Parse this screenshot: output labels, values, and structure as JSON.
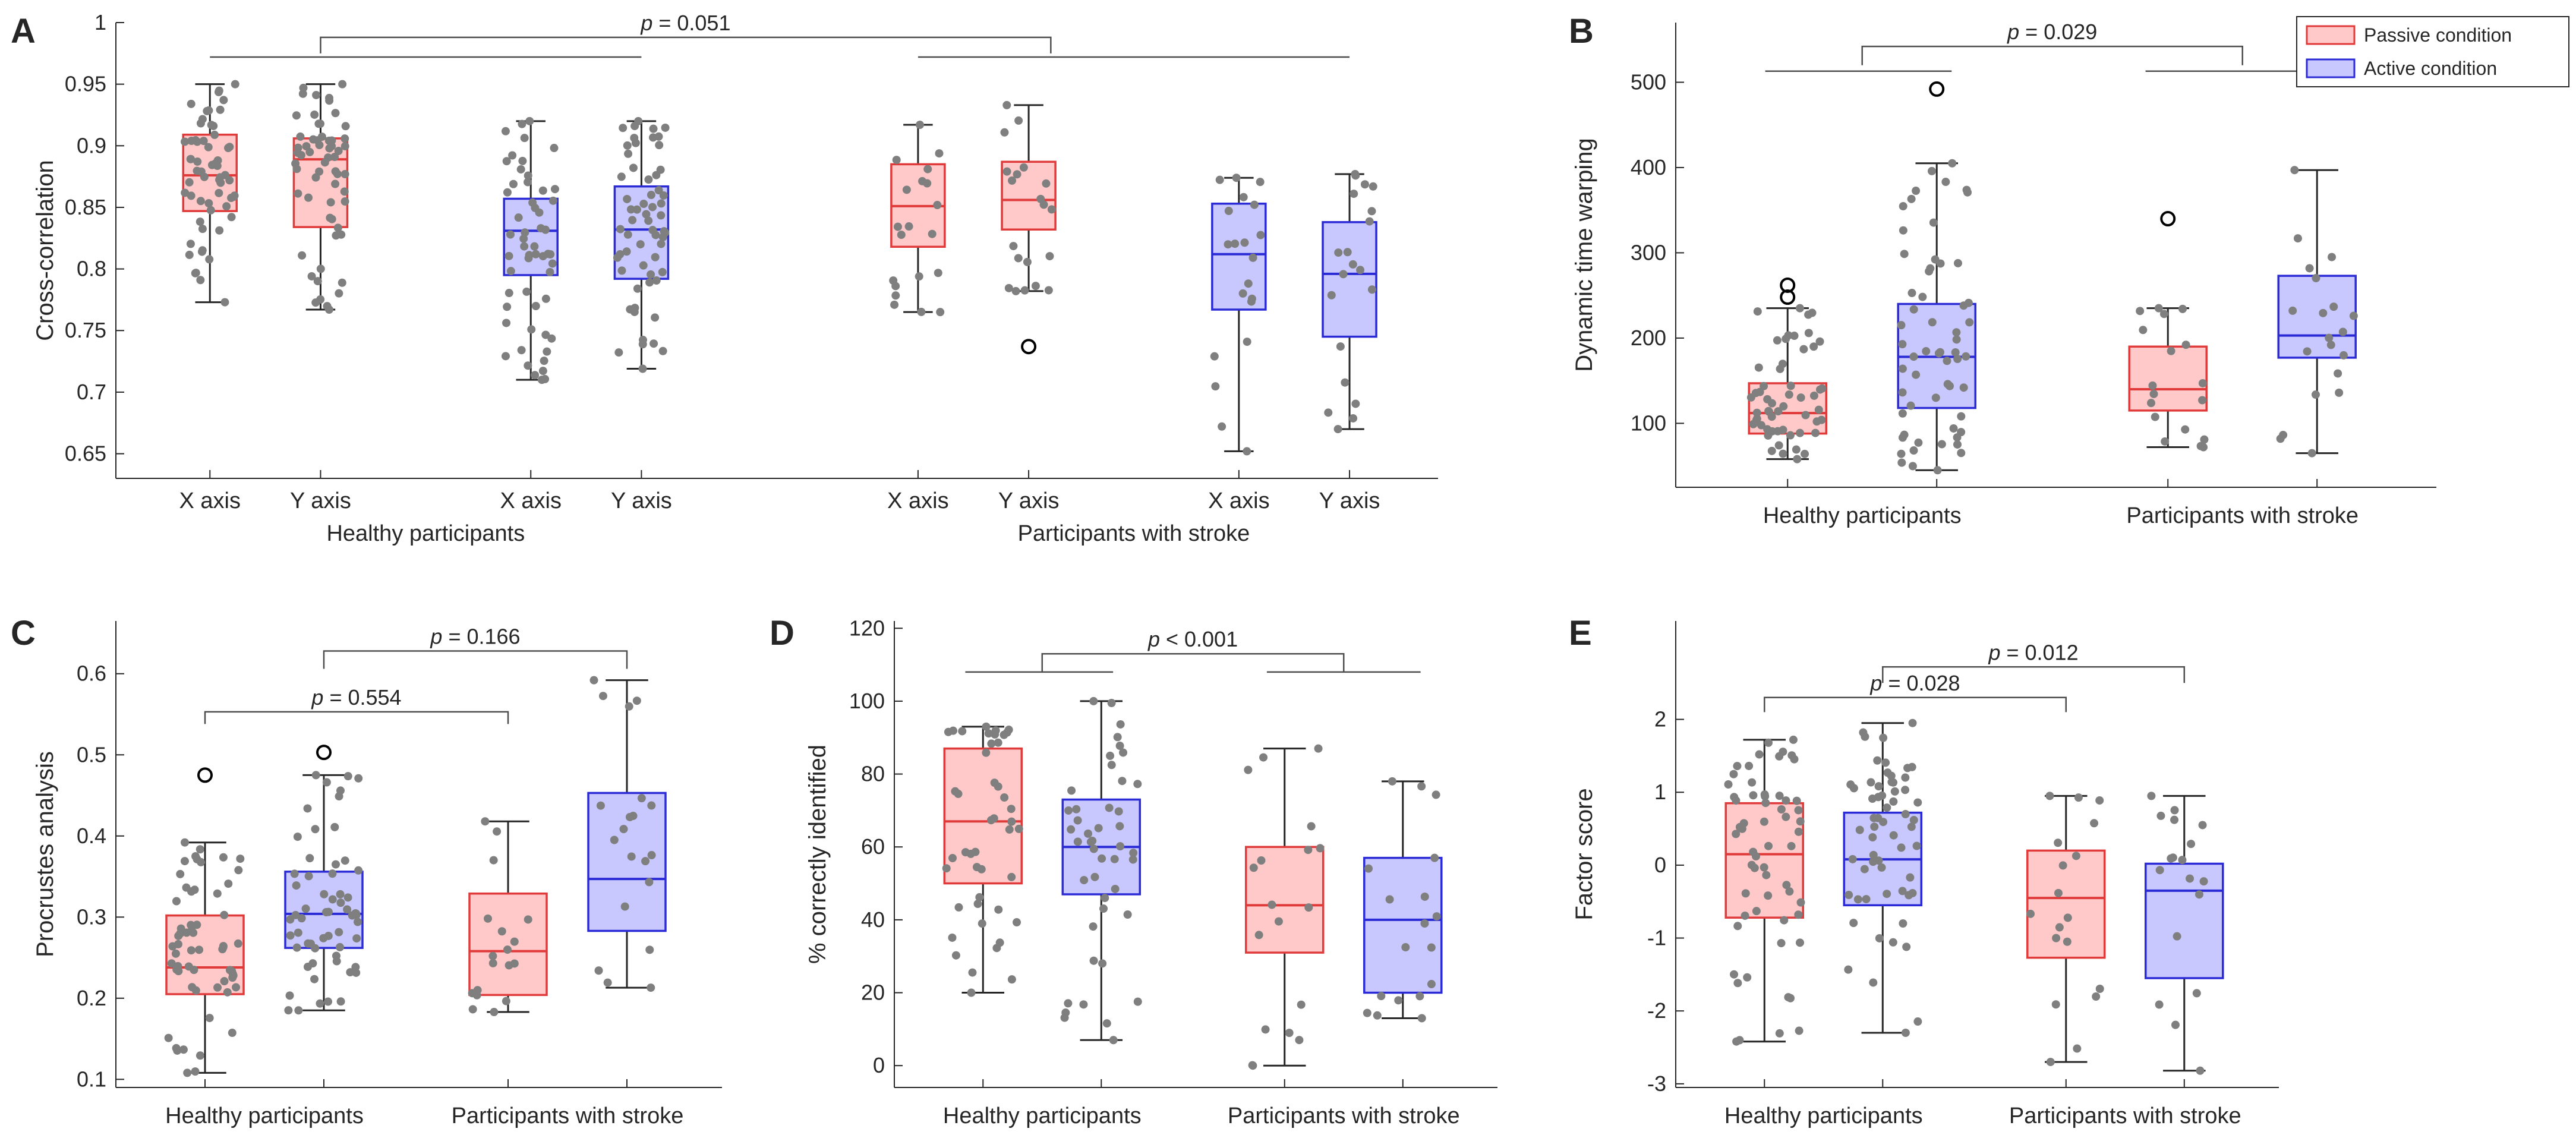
{
  "colors": {
    "passive_edge": "#e03a3a",
    "passive_fill": "#ffc9c9",
    "active_edge": "#2a2ad6",
    "active_fill": "#c8c8ff",
    "dots": "#7f7f7f",
    "axis": "#262626"
  },
  "legend": {
    "entries": [
      {
        "label": "Passive condition",
        "color_key": "passive"
      },
      {
        "label": "Active condition",
        "color_key": "active"
      }
    ]
  },
  "chart_data": [
    {
      "id": "A",
      "panel_label": "A",
      "type": "box",
      "ylabel": "Cross-correlation",
      "ylim": [
        0.63,
        1.0
      ],
      "yticks": [
        0.65,
        0.7,
        0.75,
        0.8,
        0.85,
        0.9,
        0.95,
        1
      ],
      "ytick_labels": [
        "0.65",
        "0.7",
        "0.75",
        "0.8",
        "0.85",
        "0.9",
        "0.95",
        "1"
      ],
      "x_positions": [
        1,
        2,
        3.9,
        4.9,
        7.4,
        8.4,
        10.3,
        11.3
      ],
      "xlim": [
        0.15,
        12.1
      ],
      "x_tick_labels": [
        "X axis",
        "Y axis",
        "X axis",
        "Y axis",
        "X axis",
        "Y axis",
        "X axis",
        "Y axis"
      ],
      "group_labels": [
        {
          "label": "Healthy participants",
          "x": 2.95
        },
        {
          "label": "Participants with stroke",
          "x": 9.35
        }
      ],
      "boxes": [
        {
          "x": 1,
          "cond": "passive",
          "q1": 0.847,
          "median": 0.876,
          "q3": 0.909,
          "wlo": 0.773,
          "whi": 0.95,
          "outliers": [],
          "n": 60
        },
        {
          "x": 2,
          "cond": "passive",
          "q1": 0.834,
          "median": 0.889,
          "q3": 0.906,
          "wlo": 0.767,
          "whi": 0.95,
          "outliers": [],
          "n": 60
        },
        {
          "x": 3.9,
          "cond": "active",
          "q1": 0.795,
          "median": 0.831,
          "q3": 0.857,
          "wlo": 0.71,
          "whi": 0.92,
          "outliers": [],
          "n": 55
        },
        {
          "x": 4.9,
          "cond": "active",
          "q1": 0.792,
          "median": 0.832,
          "q3": 0.867,
          "wlo": 0.719,
          "whi": 0.92,
          "outliers": [],
          "n": 60
        },
        {
          "x": 7.4,
          "cond": "passive",
          "q1": 0.818,
          "median": 0.851,
          "q3": 0.885,
          "wlo": 0.765,
          "whi": 0.917,
          "outliers": [],
          "n": 20
        },
        {
          "x": 8.4,
          "cond": "passive",
          "q1": 0.832,
          "median": 0.856,
          "q3": 0.887,
          "wlo": 0.782,
          "whi": 0.933,
          "outliers": [
            0.737
          ],
          "n": 20
        },
        {
          "x": 10.3,
          "cond": "active",
          "q1": 0.767,
          "median": 0.812,
          "q3": 0.853,
          "wlo": 0.652,
          "whi": 0.874,
          "outliers": [],
          "n": 20
        },
        {
          "x": 11.3,
          "cond": "active",
          "q1": 0.745,
          "median": 0.796,
          "q3": 0.838,
          "wlo": 0.67,
          "whi": 0.877,
          "outliers": [],
          "n": 20
        }
      ],
      "brackets": [
        {
          "label": "p = 0.051",
          "x1": 2.0,
          "x2": 8.6,
          "y": 0.988,
          "tick": 0.013,
          "subs": [
            {
              "x1": 1,
              "x2": 4.9,
              "y": 0.972
            },
            {
              "x1": 7.4,
              "x2": 11.3,
              "y": 0.972
            }
          ]
        }
      ]
    },
    {
      "id": "B",
      "panel_label": "B",
      "type": "box",
      "ylabel": "Dynamic time warping",
      "ylim": [
        25,
        570
      ],
      "yticks": [
        100,
        200,
        300,
        400,
        500
      ],
      "ytick_labels": [
        "100",
        "200",
        "300",
        "400",
        "500"
      ],
      "x_positions": [
        1,
        2,
        3.55,
        4.55
      ],
      "xlim": [
        0.25,
        5.35
      ],
      "x_tick_labels": [],
      "group_labels": [
        {
          "label": "Healthy participants",
          "x": 1.5
        },
        {
          "label": "Participants with stroke",
          "x": 4.05
        }
      ],
      "boxes": [
        {
          "x": 1,
          "cond": "passive",
          "q1": 88,
          "median": 112,
          "q3": 147,
          "wlo": 58,
          "whi": 235,
          "outliers": [
            262,
            248
          ],
          "n": 55
        },
        {
          "x": 2,
          "cond": "active",
          "q1": 118,
          "median": 178,
          "q3": 240,
          "wlo": 45,
          "whi": 405,
          "outliers": [
            492
          ],
          "n": 60
        },
        {
          "x": 3.55,
          "cond": "passive",
          "q1": 115,
          "median": 140,
          "q3": 190,
          "wlo": 72,
          "whi": 235,
          "outliers": [
            340
          ],
          "n": 18
        },
        {
          "x": 4.55,
          "cond": "active",
          "q1": 177,
          "median": 203,
          "q3": 273,
          "wlo": 65,
          "whi": 397,
          "outliers": [],
          "n": 20
        }
      ],
      "brackets": [
        {
          "label": "p = 0.029",
          "x1": 1.5,
          "x2": 4.05,
          "y": 542,
          "tick": 22,
          "subs": [
            {
              "x1": 0.85,
              "x2": 2.1,
              "y": 513
            },
            {
              "x1": 3.4,
              "x2": 4.7,
              "y": 513
            }
          ]
        }
      ]
    },
    {
      "id": "C",
      "panel_label": "C",
      "type": "box",
      "ylabel": "Procrustes analysis",
      "ylim": [
        0.09,
        0.665
      ],
      "yticks": [
        0.1,
        0.2,
        0.3,
        0.4,
        0.5,
        0.6
      ],
      "ytick_labels": [
        "0.1",
        "0.2",
        "0.3",
        "0.4",
        "0.5",
        "0.6"
      ],
      "x_positions": [
        1,
        2,
        3.55,
        4.55
      ],
      "xlim": [
        0.25,
        5.35
      ],
      "x_tick_labels": [],
      "group_labels": [
        {
          "label": "Healthy participants",
          "x": 1.5
        },
        {
          "label": "Participants with stroke",
          "x": 4.05
        }
      ],
      "boxes": [
        {
          "x": 1,
          "cond": "passive",
          "q1": 0.205,
          "median": 0.238,
          "q3": 0.302,
          "wlo": 0.108,
          "whi": 0.392,
          "outliers": [
            0.475
          ],
          "n": 60
        },
        {
          "x": 2,
          "cond": "active",
          "q1": 0.262,
          "median": 0.304,
          "q3": 0.356,
          "wlo": 0.185,
          "whi": 0.475,
          "outliers": [
            0.503
          ],
          "n": 60
        },
        {
          "x": 3.55,
          "cond": "passive",
          "q1": 0.204,
          "median": 0.258,
          "q3": 0.329,
          "wlo": 0.183,
          "whi": 0.418,
          "outliers": [],
          "n": 18
        },
        {
          "x": 4.55,
          "cond": "active",
          "q1": 0.283,
          "median": 0.347,
          "q3": 0.453,
          "wlo": 0.213,
          "whi": 0.592,
          "outliers": [],
          "n": 20
        }
      ],
      "brackets": [
        {
          "label": "p = 0.166",
          "x1": 2.0,
          "x2": 4.55,
          "y": 0.628,
          "tick": 0.022,
          "subs": []
        },
        {
          "label": "p = 0.554",
          "x1": 1.0,
          "x2": 3.55,
          "y": 0.553,
          "tick": 0.015,
          "subs": []
        }
      ]
    },
    {
      "id": "D",
      "panel_label": "D",
      "type": "box",
      "ylabel": "% correctly identified",
      "ylim": [
        -6,
        122
      ],
      "yticks": [
        0,
        20,
        40,
        60,
        80,
        100,
        120
      ],
      "ytick_labels": [
        "0",
        "20",
        "40",
        "60",
        "80",
        "100",
        "120"
      ],
      "x_positions": [
        1,
        2,
        3.55,
        4.55
      ],
      "xlim": [
        0.25,
        5.35
      ],
      "x_tick_labels": [],
      "group_labels": [
        {
          "label": "Healthy participants",
          "x": 1.5
        },
        {
          "label": "Participants with stroke",
          "x": 4.05
        }
      ],
      "boxes": [
        {
          "x": 1,
          "cond": "passive",
          "q1": 50,
          "median": 67,
          "q3": 87,
          "wlo": 20,
          "whi": 93,
          "outliers": [],
          "n": 45
        },
        {
          "x": 2,
          "cond": "active",
          "q1": 47,
          "median": 60,
          "q3": 73,
          "wlo": 7,
          "whi": 100,
          "outliers": [],
          "n": 45
        },
        {
          "x": 3.55,
          "cond": "passive",
          "q1": 31,
          "median": 44,
          "q3": 60,
          "wlo": 0,
          "whi": 87,
          "outliers": [],
          "n": 18
        },
        {
          "x": 4.55,
          "cond": "active",
          "q1": 20,
          "median": 40,
          "q3": 57,
          "wlo": 13,
          "whi": 78,
          "outliers": [],
          "n": 18
        }
      ],
      "brackets": [
        {
          "label": "p < 0.001",
          "x1": 1.5,
          "x2": 4.05,
          "y": 113,
          "tick": 5,
          "subs": [
            {
              "x1": 0.85,
              "x2": 2.1,
              "y": 108
            },
            {
              "x1": 3.4,
              "x2": 4.7,
              "y": 108
            }
          ]
        }
      ]
    },
    {
      "id": "E",
      "panel_label": "E",
      "type": "box",
      "ylabel": "Factor score",
      "ylim": [
        -3.05,
        3.35
      ],
      "yticks": [
        -3,
        -2,
        -1,
        0,
        1,
        2
      ],
      "ytick_labels": [
        "-3",
        "-2",
        "-1",
        "0",
        "1",
        "2"
      ],
      "x_positions": [
        1,
        2,
        3.55,
        4.55
      ],
      "xlim": [
        0.25,
        5.35
      ],
      "x_tick_labels": [],
      "group_labels": [
        {
          "label": "Healthy participants",
          "x": 1.5
        },
        {
          "label": "Participants with stroke",
          "x": 4.05
        }
      ],
      "boxes": [
        {
          "x": 1,
          "cond": "passive",
          "q1": -0.72,
          "median": 0.15,
          "q3": 0.85,
          "wlo": -2.42,
          "whi": 1.72,
          "outliers": [],
          "n": 60
        },
        {
          "x": 2,
          "cond": "active",
          "q1": -0.55,
          "median": 0.08,
          "q3": 0.72,
          "wlo": -2.3,
          "whi": 1.95,
          "outliers": [],
          "n": 60
        },
        {
          "x": 3.55,
          "cond": "passive",
          "q1": -1.27,
          "median": -0.45,
          "q3": 0.2,
          "wlo": -2.7,
          "whi": 0.95,
          "outliers": [],
          "n": 18
        },
        {
          "x": 4.55,
          "cond": "active",
          "q1": -1.55,
          "median": -0.35,
          "q3": 0.02,
          "wlo": -2.82,
          "whi": 0.95,
          "outliers": [],
          "n": 18
        }
      ],
      "brackets": [
        {
          "label": "p = 0.012",
          "x1": 2.0,
          "x2": 4.55,
          "y": 2.72,
          "tick": 0.22,
          "subs": []
        },
        {
          "label": "p = 0.028",
          "x1": 1.0,
          "x2": 3.55,
          "y": 2.3,
          "tick": 0.2,
          "subs": []
        }
      ]
    }
  ]
}
